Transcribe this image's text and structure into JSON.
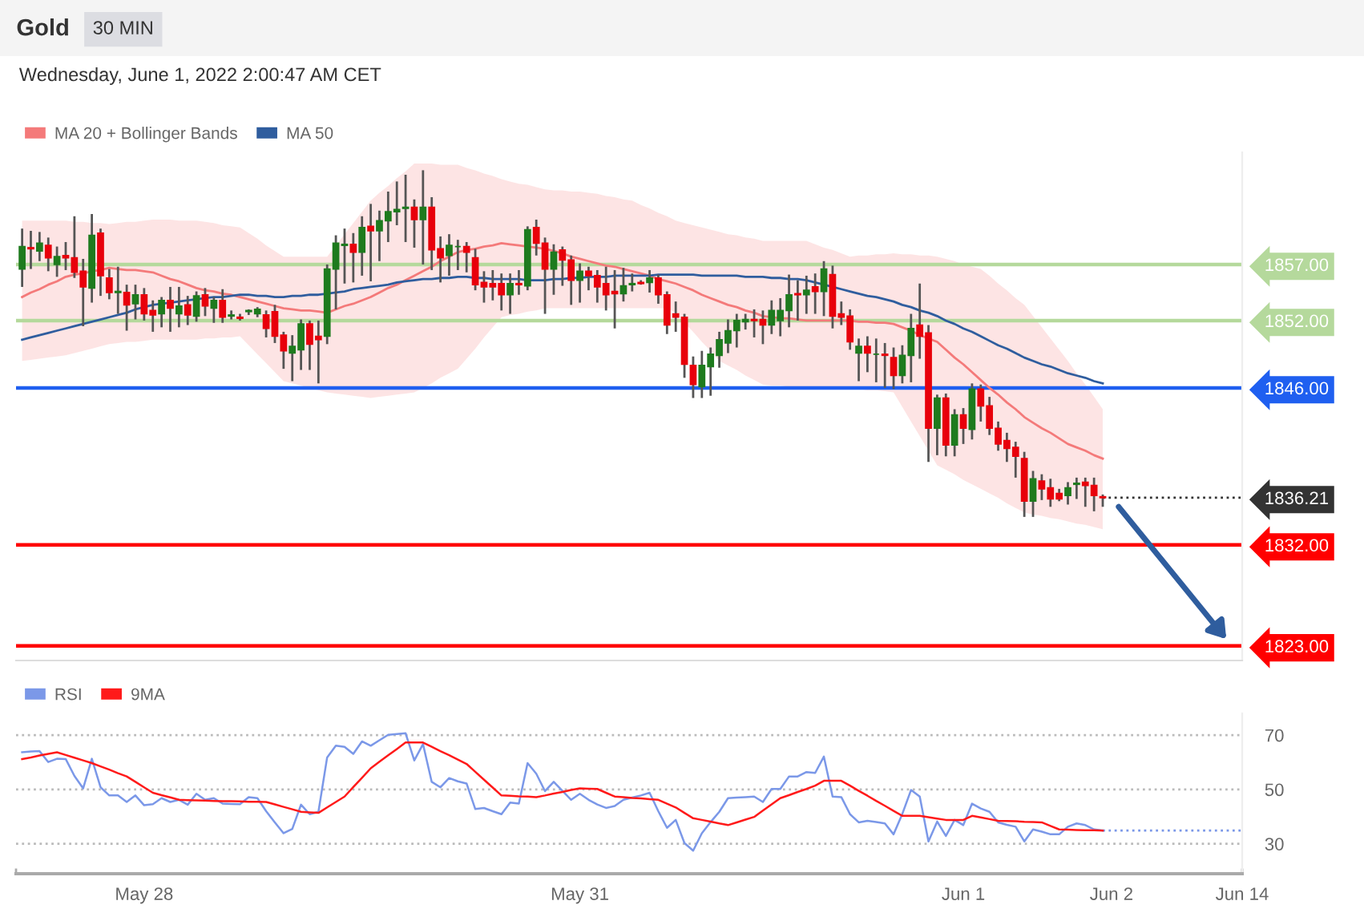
{
  "chart_data": [
    {
      "type": "candlestick",
      "title": "Gold",
      "subtitle": "30 MIN",
      "annotations": [
        "Wednesday, June 1, 2022 2:00:47 AM CET"
      ],
      "categories": [
        null,
        null,
        null,
        null,
        null,
        null,
        null,
        null,
        null,
        null,
        null,
        null,
        null,
        null,
        null,
        null,
        null,
        null,
        null,
        null,
        null,
        null,
        null,
        null,
        null,
        null,
        null,
        null,
        null,
        null,
        null,
        null,
        null,
        null,
        null,
        null,
        null,
        null,
        null,
        null,
        null,
        null,
        null,
        null,
        null,
        null,
        null,
        null,
        null,
        null,
        null,
        null,
        null,
        null,
        null,
        null,
        null,
        null,
        null,
        null,
        null,
        null,
        null,
        null,
        null,
        null,
        null,
        null,
        null,
        null,
        null,
        null,
        null,
        null,
        null,
        null,
        null,
        null,
        null,
        null,
        null,
        null,
        null,
        null,
        null,
        null,
        null,
        null,
        null,
        null,
        null,
        null,
        null,
        null,
        null,
        null,
        null,
        null,
        null,
        null,
        null,
        null,
        null,
        null,
        null,
        null,
        null,
        null,
        null,
        null,
        null,
        null,
        null,
        null,
        null,
        null,
        null,
        null,
        null,
        null,
        null,
        null,
        null,
        null,
        null,
        null,
        null,
        null,
        null,
        null,
        null,
        null,
        null,
        null,
        null,
        null,
        null,
        null,
        null,
        null,
        null
      ],
      "ohlc": [
        [
          1856.6,
          1860.2,
          1855.0,
          1858.6
        ],
        [
          1858.5,
          1860.0,
          1856.6,
          1858.4
        ],
        [
          1858.2,
          1859.9,
          1857.3,
          1858.9
        ],
        [
          1858.7,
          1859.4,
          1856.4,
          1857.6
        ],
        [
          1857.0,
          1858.6,
          1855.9,
          1857.7
        ],
        [
          1857.8,
          1859.0,
          1856.5,
          1857.6
        ],
        [
          1857.6,
          1861.3,
          1855.8,
          1856.3
        ],
        [
          1856.4,
          1857.5,
          1851.5,
          1855.0
        ],
        [
          1854.9,
          1861.5,
          1853.6,
          1859.6
        ],
        [
          1859.8,
          1860.2,
          1854.2,
          1856.0
        ],
        [
          1855.8,
          1856.6,
          1853.9,
          1854.5
        ],
        [
          1854.5,
          1856.8,
          1852.6,
          1854.6
        ],
        [
          1854.5,
          1855.2,
          1851.1,
          1853.4
        ],
        [
          1853.5,
          1855.2,
          1852.1,
          1854.3
        ],
        [
          1854.3,
          1854.9,
          1852.0,
          1852.6
        ],
        [
          1852.9,
          1853.8,
          1851.0,
          1852.5
        ],
        [
          1852.6,
          1854.1,
          1851.4,
          1853.8
        ],
        [
          1853.8,
          1855.0,
          1851.0,
          1853.1
        ],
        [
          1852.6,
          1855.0,
          1851.4,
          1853.3
        ],
        [
          1853.4,
          1854.2,
          1851.6,
          1852.5
        ],
        [
          1852.4,
          1854.6,
          1851.9,
          1854.2
        ],
        [
          1854.3,
          1854.9,
          1852.4,
          1853.3
        ],
        [
          1853.1,
          1854.1,
          1851.8,
          1853.8
        ],
        [
          1853.8,
          1854.8,
          1851.8,
          1852.3
        ],
        [
          1852.4,
          1852.9,
          1852.1,
          1852.5
        ],
        [
          1852.3,
          1852.6,
          1852.0,
          1852.2
        ],
        [
          1852.8,
          1853.0,
          1852.5,
          1852.9
        ],
        [
          1852.6,
          1853.2,
          1852.3,
          1853.0
        ],
        [
          1852.5,
          1852.9,
          1850.5,
          1851.3
        ],
        [
          1852.8,
          1853.4,
          1850.0,
          1850.6
        ],
        [
          1850.7,
          1851.0,
          1847.7,
          1849.3
        ],
        [
          1849.1,
          1850.7,
          1846.6,
          1849.7
        ],
        [
          1849.4,
          1852.1,
          1847.6,
          1851.7
        ],
        [
          1851.7,
          1852.0,
          1847.6,
          1849.9
        ],
        [
          1850.6,
          1852.0,
          1846.4,
          1850.3
        ],
        [
          1850.6,
          1857.0,
          1849.9,
          1856.6
        ],
        [
          1856.6,
          1859.6,
          1853.0,
          1858.9
        ],
        [
          1858.7,
          1860.2,
          1855.3,
          1858.8
        ],
        [
          1858.8,
          1859.8,
          1855.4,
          1858.1
        ],
        [
          1858.1,
          1861.3,
          1856.0,
          1860.3
        ],
        [
          1860.4,
          1862.4,
          1855.5,
          1860.0
        ],
        [
          1860.0,
          1861.8,
          1857.3,
          1860.9
        ],
        [
          1860.9,
          1863.5,
          1859.0,
          1861.7
        ],
        [
          1861.7,
          1864.4,
          1860.5,
          1861.9
        ],
        [
          1862.0,
          1865.0,
          1859.0,
          1862.1
        ],
        [
          1862.1,
          1862.8,
          1858.5,
          1861.0
        ],
        [
          1861.0,
          1865.4,
          1857.0,
          1862.1
        ],
        [
          1862.1,
          1863.0,
          1856.5,
          1858.3
        ],
        [
          1858.4,
          1859.5,
          1855.4,
          1857.6
        ],
        [
          1857.8,
          1859.7,
          1856.0,
          1858.7
        ],
        [
          1858.6,
          1859.2,
          1856.5,
          1858.6
        ],
        [
          1858.6,
          1859.0,
          1856.3,
          1858.1
        ],
        [
          1857.6,
          1858.4,
          1854.7,
          1855.2
        ],
        [
          1855.4,
          1856.4,
          1853.6,
          1855.0
        ],
        [
          1855.3,
          1856.5,
          1853.8,
          1855.0
        ],
        [
          1855.3,
          1856.2,
          1852.9,
          1854.3
        ],
        [
          1854.3,
          1856.2,
          1852.6,
          1855.3
        ],
        [
          1855.3,
          1856.5,
          1854.3,
          1855.2
        ],
        [
          1855.1,
          1860.4,
          1854.7,
          1860.1
        ],
        [
          1860.3,
          1861.0,
          1857.8,
          1858.9
        ],
        [
          1858.9,
          1859.4,
          1852.6,
          1856.6
        ],
        [
          1856.6,
          1858.8,
          1854.3,
          1858.1
        ],
        [
          1858.3,
          1858.6,
          1855.1,
          1857.4
        ],
        [
          1857.4,
          1857.8,
          1853.4,
          1855.6
        ],
        [
          1855.6,
          1857.1,
          1853.6,
          1856.4
        ],
        [
          1856.4,
          1856.8,
          1854.7,
          1856.0
        ],
        [
          1856.0,
          1856.5,
          1853.6,
          1855.0
        ],
        [
          1855.3,
          1856.8,
          1852.9,
          1854.3
        ],
        [
          1854.6,
          1856.5,
          1851.3,
          1854.4
        ],
        [
          1854.4,
          1856.7,
          1853.7,
          1855.1
        ],
        [
          1855.2,
          1856.2,
          1854.6,
          1855.3
        ],
        [
          1855.4,
          1855.6,
          1855.2,
          1855.3
        ],
        [
          1855.4,
          1856.5,
          1854.5,
          1855.8
        ],
        [
          1855.8,
          1856.1,
          1853.5,
          1854.3
        ],
        [
          1854.3,
          1854.6,
          1850.8,
          1851.6
        ],
        [
          1852.6,
          1853.7,
          1851.0,
          1852.3
        ],
        [
          1852.3,
          1852.6,
          1846.9,
          1848.1
        ],
        [
          1848.0,
          1848.8,
          1845.1,
          1846.3
        ],
        [
          1846.1,
          1849.3,
          1845.1,
          1848.0
        ],
        [
          1847.9,
          1849.6,
          1845.3,
          1849.0
        ],
        [
          1848.9,
          1851.0,
          1847.8,
          1850.3
        ],
        [
          1850.0,
          1852.1,
          1849.1,
          1851.1
        ],
        [
          1851.1,
          1852.6,
          1849.6,
          1852.0
        ],
        [
          1851.9,
          1852.6,
          1851.2,
          1852.1
        ],
        [
          1852.1,
          1853.0,
          1850.5,
          1852.0
        ],
        [
          1852.1,
          1852.9,
          1849.9,
          1851.6
        ],
        [
          1851.6,
          1853.8,
          1850.8,
          1852.9
        ],
        [
          1852.0,
          1854.0,
          1850.6,
          1852.9
        ],
        [
          1852.9,
          1856.1,
          1851.4,
          1854.3
        ],
        [
          1854.4,
          1855.6,
          1852.0,
          1854.3
        ],
        [
          1854.3,
          1856.0,
          1852.6,
          1854.7
        ],
        [
          1855.0,
          1856.2,
          1852.6,
          1854.6
        ],
        [
          1854.6,
          1857.3,
          1852.4,
          1856.6
        ],
        [
          1856.1,
          1856.9,
          1851.3,
          1852.4
        ],
        [
          1852.6,
          1853.7,
          1851.6,
          1852.3
        ],
        [
          1852.4,
          1853.0,
          1849.4,
          1850.1
        ],
        [
          1849.1,
          1850.4,
          1846.6,
          1849.7
        ],
        [
          1849.7,
          1850.6,
          1847.4,
          1849.1
        ],
        [
          1849.0,
          1850.4,
          1846.5,
          1849.0
        ],
        [
          1849.0,
          1850.0,
          1846.0,
          1848.9
        ],
        [
          1848.7,
          1849.6,
          1845.9,
          1847.1
        ],
        [
          1847.1,
          1849.8,
          1846.4,
          1848.9
        ],
        [
          1848.9,
          1852.6,
          1846.5,
          1851.3
        ],
        [
          1851.6,
          1855.3,
          1848.6,
          1850.6
        ],
        [
          1850.9,
          1851.6,
          1839.4,
          1842.4
        ],
        [
          1842.4,
          1845.4,
          1840.0,
          1845.1
        ],
        [
          1845.1,
          1845.5,
          1839.9,
          1840.9
        ],
        [
          1840.9,
          1844.1,
          1839.9,
          1843.6
        ],
        [
          1843.6,
          1844.2,
          1841.0,
          1842.4
        ],
        [
          1842.3,
          1846.4,
          1841.4,
          1845.9
        ],
        [
          1845.9,
          1846.3,
          1843.0,
          1844.4
        ],
        [
          1844.4,
          1845.2,
          1841.8,
          1842.4
        ],
        [
          1842.4,
          1843.0,
          1840.4,
          1841.0
        ],
        [
          1841.3,
          1842.0,
          1839.4,
          1840.6
        ],
        [
          1840.7,
          1841.2,
          1838.0,
          1839.9
        ],
        [
          1839.7,
          1840.3,
          1834.5,
          1835.9
        ],
        [
          1835.9,
          1838.6,
          1834.5,
          1837.9
        ],
        [
          1837.7,
          1838.3,
          1836.0,
          1837.0
        ],
        [
          1837.1,
          1837.9,
          1835.4,
          1836.1
        ],
        [
          1836.6,
          1837.0,
          1835.9,
          1836.1
        ],
        [
          1836.4,
          1837.6,
          1835.6,
          1837.1
        ],
        [
          1837.4,
          1838.0,
          1836.1,
          1837.5
        ],
        [
          1837.6,
          1838.0,
          1835.4,
          1837.3
        ],
        [
          1837.3,
          1838.0,
          1835.0,
          1836.4
        ],
        [
          1836.3,
          1836.5,
          1835.4,
          1836.21
        ],
        null,
        null,
        null,
        null,
        null,
        null,
        null,
        null,
        null,
        null,
        null,
        null,
        null,
        null,
        null,
        null
      ],
      "colors": [
        "#1e7b1e",
        "#e8000b",
        "#1e7b1e",
        "#e8000b",
        "#1e7b1e",
        "#e8000b",
        "#e8000b",
        "#e8000b",
        "#1e7b1e",
        "#e8000b",
        "#e8000b",
        "#1e7b1e",
        "#e8000b",
        "#1e7b1e",
        "#e8000b",
        "#e8000b",
        "#1e7b1e",
        "#e8000b",
        "#1e7b1e",
        "#e8000b",
        "#1e7b1e",
        "#e8000b",
        "#1e7b1e",
        "#e8000b",
        "#1e7b1e",
        "#e8000b",
        "#1e7b1e",
        "#1e7b1e",
        "#e8000b",
        "#e8000b",
        "#e8000b",
        "#1e7b1e",
        "#1e7b1e",
        "#e8000b",
        "#e8000b",
        "#1e7b1e",
        "#1e7b1e",
        "#1e7b1e",
        "#e8000b",
        "#1e7b1e",
        "#e8000b",
        "#1e7b1e",
        "#1e7b1e",
        "#1e7b1e",
        "#1e7b1e",
        "#e8000b",
        "#1e7b1e",
        "#e8000b",
        "#e8000b",
        "#1e7b1e",
        "#1e7b1e",
        "#e8000b",
        "#e8000b",
        "#e8000b",
        "#e8000b",
        "#e8000b",
        "#1e7b1e",
        "#e8000b",
        "#1e7b1e",
        "#e8000b",
        "#e8000b",
        "#1e7b1e",
        "#e8000b",
        "#e8000b",
        "#1e7b1e",
        "#e8000b",
        "#e8000b",
        "#e8000b",
        "#e8000b",
        "#1e7b1e",
        "#1e7b1e",
        "#e8000b",
        "#1e7b1e",
        "#e8000b",
        "#e8000b",
        "#e8000b",
        "#e8000b",
        "#e8000b",
        "#1e7b1e",
        "#1e7b1e",
        "#1e7b1e",
        "#1e7b1e",
        "#1e7b1e",
        "#1e7b1e",
        "#e8000b",
        "#e8000b",
        "#1e7b1e",
        "#1e7b1e",
        "#1e7b1e",
        "#e8000b",
        "#1e7b1e",
        "#e8000b",
        "#1e7b1e",
        "#e8000b",
        "#e8000b",
        "#e8000b",
        "#1e7b1e",
        "#e8000b",
        "#1e7b1e",
        "#e8000b",
        "#e8000b",
        "#1e7b1e",
        "#1e7b1e",
        "#e8000b",
        "#e8000b",
        "#1e7b1e",
        "#e8000b",
        "#1e7b1e",
        "#e8000b",
        "#1e7b1e",
        "#e8000b",
        "#e8000b",
        "#e8000b",
        "#e8000b",
        "#e8000b",
        "#e8000b",
        "#1e7b1e",
        "#e8000b",
        "#e8000b",
        "#e8000b",
        "#1e7b1e",
        "#1e7b1e",
        "#e8000b",
        "#e8000b",
        "#e8000b",
        null,
        null,
        null,
        null,
        null,
        null,
        null,
        null,
        null,
        null,
        null,
        null,
        null,
        null,
        null,
        null
      ],
      "series": [
        {
          "name": "MA 20 + Bollinger Bands",
          "type": "line",
          "color": "#f47a7a",
          "values": [
            1854.1,
            1854.5,
            1854.8,
            1855.2,
            1855.5,
            1855.9,
            1856.1,
            1856.2,
            1856.4,
            1856.5,
            1856.7,
            1856.6,
            1856.5,
            1856.5,
            1856.4,
            1856.3,
            1856.0,
            1855.7,
            1855.5,
            1855.2,
            1854.9,
            1854.7,
            1854.6,
            1854.4,
            1854.3,
            1854.1,
            1853.9,
            1853.7,
            1853.5,
            1853.3,
            1853.1,
            1853.0,
            1852.9,
            1852.9,
            1852.8,
            1852.7,
            1853.0,
            1853.3,
            1853.5,
            1853.8,
            1854.1,
            1854.5,
            1854.9,
            1855.2,
            1855.6,
            1856.0,
            1856.4,
            1856.8,
            1857.3,
            1857.7,
            1858.1,
            1858.3,
            1858.4,
            1858.6,
            1858.7,
            1858.9,
            1858.8,
            1858.7,
            1858.6,
            1858.5,
            1858.4,
            1858.2,
            1858.0,
            1857.7,
            1857.5,
            1857.3,
            1857.1,
            1856.9,
            1856.8,
            1856.6,
            1856.4,
            1856.2,
            1856.0,
            1855.7,
            1855.5,
            1855.3,
            1855.0,
            1854.7,
            1854.3,
            1854.0,
            1853.7,
            1853.4,
            1853.2,
            1852.9,
            1852.7,
            1852.4,
            1852.3,
            1852.2,
            1852.2,
            1852.1,
            1852.0,
            1852.0,
            1852.0,
            1852.0,
            1852.0,
            1852.0,
            1851.9,
            1851.9,
            1851.8,
            1851.8,
            1851.7,
            1851.4,
            1851.1,
            1850.7,
            1850.4,
            1850.1,
            1849.4,
            1848.7,
            1848.1,
            1847.4,
            1846.7,
            1846.0,
            1845.4,
            1844.7,
            1844.1,
            1843.4,
            1842.9,
            1842.4,
            1842.0,
            1841.5,
            1841.0,
            1840.7,
            1840.4,
            1840.0,
            1839.7,
            null,
            null,
            null,
            null,
            null,
            null,
            null,
            null,
            null,
            null,
            null,
            null,
            null,
            null,
            null,
            null
          ],
          "upper": [
            1860.9,
            1860.9,
            1860.9,
            1860.9,
            1860.9,
            1860.9,
            1860.8,
            1860.8,
            1860.7,
            1860.7,
            1860.6,
            1860.7,
            1860.8,
            1860.8,
            1860.9,
            1861.0,
            1861.0,
            1861.0,
            1860.9,
            1860.9,
            1860.9,
            1860.8,
            1860.7,
            1860.5,
            1860.4,
            1860.3,
            1859.8,
            1859.3,
            1858.7,
            1858.2,
            1857.7,
            1857.7,
            1857.7,
            1857.7,
            1857.7,
            1857.7,
            1858.7,
            1859.7,
            1860.7,
            1861.7,
            1862.7,
            1863.4,
            1864.0,
            1864.7,
            1865.3,
            1866.0,
            1866.0,
            1866.0,
            1865.9,
            1865.9,
            1865.9,
            1865.6,
            1865.4,
            1865.1,
            1864.9,
            1864.6,
            1864.4,
            1864.2,
            1864.1,
            1863.9,
            1863.7,
            1863.6,
            1863.6,
            1863.5,
            1863.5,
            1863.4,
            1863.3,
            1863.1,
            1863.0,
            1862.8,
            1862.7,
            1862.3,
            1862.0,
            1861.6,
            1861.3,
            1860.9,
            1860.7,
            1860.5,
            1860.3,
            1860.1,
            1859.9,
            1859.7,
            1859.6,
            1859.4,
            1859.3,
            1859.1,
            1859.1,
            1859.1,
            1859.1,
            1859.1,
            1859.1,
            1858.8,
            1858.5,
            1858.3,
            1858.0,
            1857.7,
            1857.8,
            1857.8,
            1857.9,
            1857.9,
            1858.0,
            1857.9,
            1857.9,
            1857.8,
            1857.8,
            1857.7,
            1857.5,
            1857.3,
            1857.0,
            1856.8,
            1856.6,
            1856.0,
            1855.3,
            1854.7,
            1854.0,
            1853.4,
            1852.4,
            1851.4,
            1850.4,
            1849.4,
            1848.4,
            1847.3,
            1846.3,
            1845.2,
            1844.1,
            null,
            null,
            null,
            null,
            null,
            null,
            null,
            null,
            null,
            null,
            null,
            null,
            null,
            null,
            null,
            null
          ],
          "lower": [
            1848.4,
            1848.5,
            1848.6,
            1848.7,
            1848.8,
            1848.9,
            1849.1,
            1849.3,
            1849.5,
            1849.7,
            1849.9,
            1850.0,
            1850.1,
            1850.1,
            1850.2,
            1850.3,
            1850.3,
            1850.3,
            1850.3,
            1850.3,
            1850.3,
            1850.4,
            1850.4,
            1850.5,
            1850.5,
            1850.6,
            1849.8,
            1849.0,
            1848.2,
            1847.4,
            1846.6,
            1846.4,
            1846.2,
            1846.0,
            1845.8,
            1845.6,
            1845.5,
            1845.4,
            1845.3,
            1845.2,
            1845.1,
            1845.2,
            1845.3,
            1845.4,
            1845.5,
            1845.6,
            1846.0,
            1846.4,
            1846.9,
            1847.3,
            1847.7,
            1848.6,
            1849.5,
            1850.5,
            1851.4,
            1852.3,
            1852.5,
            1852.6,
            1852.8,
            1852.9,
            1853.1,
            1853.1,
            1853.1,
            1853.1,
            1853.1,
            1853.1,
            1853.1,
            1853.1,
            1853.1,
            1853.1,
            1853.1,
            1853.1,
            1853.1,
            1853.1,
            1853.1,
            1852.7,
            1851.8,
            1851.0,
            1850.1,
            1849.3,
            1848.4,
            1848.0,
            1847.6,
            1847.1,
            1846.7,
            1846.3,
            1846.2,
            1846.2,
            1846.1,
            1846.1,
            1846.0,
            1846.0,
            1846.0,
            1846.0,
            1846.0,
            1846.0,
            1845.9,
            1845.8,
            1845.8,
            1845.7,
            1845.6,
            1844.3,
            1843.0,
            1841.7,
            1840.4,
            1839.1,
            1838.7,
            1838.3,
            1837.8,
            1837.4,
            1837.0,
            1836.6,
            1836.2,
            1835.7,
            1835.3,
            1834.9,
            1834.7,
            1834.6,
            1834.4,
            1834.3,
            1834.1,
            1833.9,
            1833.8,
            1833.6,
            1833.4,
            null,
            null,
            null,
            null,
            null,
            null,
            null,
            null,
            null,
            null,
            null,
            null,
            null,
            null,
            null,
            null
          ]
        },
        {
          "name": "MA 50",
          "type": "line",
          "color": "#2f5d9e",
          "values": [
            1850.3,
            1850.5,
            1850.7,
            1850.9,
            1851.1,
            1851.3,
            1851.5,
            1851.7,
            1851.9,
            1852.1,
            1852.3,
            1852.5,
            1852.7,
            1853.0,
            1853.2,
            1853.4,
            1853.5,
            1853.6,
            1853.7,
            1853.8,
            1853.9,
            1854.0,
            1854.1,
            1854.1,
            1854.2,
            1854.3,
            1854.3,
            1854.2,
            1854.2,
            1854.1,
            1854.1,
            1854.2,
            1854.2,
            1854.3,
            1854.3,
            1854.4,
            1854.5,
            1854.6,
            1854.8,
            1854.9,
            1855.0,
            1855.1,
            1855.2,
            1855.4,
            1855.5,
            1855.6,
            1855.7,
            1855.7,
            1855.8,
            1855.8,
            1855.9,
            1855.9,
            1855.8,
            1855.8,
            1855.7,
            1855.7,
            1855.7,
            1855.7,
            1855.6,
            1855.6,
            1855.6,
            1855.7,
            1855.7,
            1855.8,
            1855.8,
            1855.9,
            1855.9,
            1855.9,
            1856.0,
            1856.0,
            1856.0,
            1856.0,
            1856.0,
            1856.1,
            1856.1,
            1856.1,
            1856.1,
            1856.1,
            1856.0,
            1856.0,
            1856.0,
            1856.0,
            1856.0,
            1855.9,
            1855.9,
            1855.9,
            1855.8,
            1855.8,
            1855.7,
            1855.7,
            1855.6,
            1855.4,
            1855.2,
            1855.0,
            1854.8,
            1854.6,
            1854.4,
            1854.2,
            1854.1,
            1853.9,
            1853.7,
            1853.4,
            1853.2,
            1852.9,
            1852.7,
            1852.4,
            1852.0,
            1851.7,
            1851.3,
            1851.0,
            1850.6,
            1850.2,
            1849.8,
            1849.5,
            1849.1,
            1848.7,
            1848.4,
            1848.1,
            1847.9,
            1847.6,
            1847.3,
            1847.1,
            1846.9,
            1846.6,
            1846.4,
            null,
            null,
            null,
            null,
            null,
            null,
            null,
            null,
            null,
            null,
            null,
            null,
            null,
            null,
            null,
            null
          ]
        }
      ],
      "ylim": [
        1821.7,
        1867
      ],
      "yticks": [
        {
          "value": 1857,
          "label": "1857.00"
        },
        {
          "value": 1852,
          "label": "1852.00"
        },
        {
          "value": 1846,
          "label": "1846.00"
        },
        {
          "value": 1836.21,
          "label": "1836.21"
        },
        {
          "value": 1832,
          "label": "1832.00"
        },
        {
          "value": 1823,
          "label": "1823.00"
        }
      ],
      "ref_lines": [
        {
          "axis": "y",
          "value": 1857,
          "color": "#b5d99c",
          "line_style": "solid"
        },
        {
          "axis": "y",
          "value": 1852,
          "color": "#b5d99c",
          "line_style": "solid"
        },
        {
          "axis": "y",
          "value": 1846,
          "color": "#1f5ff0",
          "line_style": "solid"
        },
        {
          "axis": "y",
          "value": 1836.21,
          "color": "#333333",
          "line_style": "dotted"
        },
        {
          "axis": "y",
          "value": 1832,
          "color": "#ff0000",
          "line_style": "solid"
        },
        {
          "axis": "y",
          "value": 1823,
          "color": "#ff0000",
          "line_style": "solid"
        }
      ],
      "legend": "top left",
      "tick_labels": "y"
    },
    {
      "type": "line",
      "categories": [
        null,
        null,
        null,
        null,
        null,
        null,
        null,
        null,
        null,
        null,
        null,
        null,
        null,
        null,
        "May 28",
        null,
        null,
        null,
        null,
        null,
        null,
        null,
        null,
        null,
        null,
        null,
        null,
        null,
        null,
        null,
        null,
        null,
        null,
        null,
        null,
        null,
        null,
        null,
        null,
        null,
        null,
        null,
        null,
        null,
        null,
        null,
        null,
        null,
        null,
        null,
        null,
        null,
        null,
        null,
        null,
        null,
        null,
        null,
        null,
        null,
        null,
        null,
        null,
        null,
        "May 31",
        null,
        null,
        null,
        null,
        null,
        null,
        null,
        null,
        null,
        null,
        null,
        null,
        null,
        null,
        null,
        null,
        null,
        null,
        null,
        null,
        null,
        null,
        null,
        null,
        null,
        null,
        null,
        null,
        null,
        null,
        null,
        null,
        null,
        null,
        null,
        null,
        null,
        null,
        null,
        null,
        null,
        null,
        null,
        "Jun 1",
        null,
        null,
        null,
        null,
        null,
        null,
        null,
        null,
        null,
        null,
        null,
        null,
        null,
        null,
        null,
        null,
        "Jun 2",
        null,
        null,
        null,
        null,
        null,
        null,
        null,
        null,
        null,
        null,
        null,
        null,
        null,
        null,
        "Jun 14"
      ],
      "series": [
        {
          "name": "RSI",
          "color": "#7b98e8",
          "values": [
            63.7,
            64.0,
            64.1,
            60.1,
            61.3,
            61.2,
            55.0,
            50.4,
            61.3,
            50.8,
            47.8,
            47.8,
            45.4,
            47.8,
            44.2,
            44.6,
            46.8,
            45.4,
            46.2,
            44.4,
            48.4,
            46.2,
            46.8,
            44.8,
            44.7,
            44.6,
            47.2,
            46.8,
            42.0,
            37.9,
            33.9,
            35.5,
            44.4,
            40.9,
            41.8,
            61.8,
            66.1,
            65.7,
            63.1,
            67.7,
            66.1,
            68.1,
            70.1,
            70.4,
            70.7,
            60.7,
            66.7,
            52.8,
            50.8,
            54.2,
            53.0,
            52.2,
            42.8,
            43.2,
            42.0,
            40.9,
            45.2,
            44.8,
            59.7,
            55.8,
            49.4,
            52.8,
            49.5,
            46.2,
            48.4,
            46.2,
            44.5,
            43.2,
            43.9,
            46.2,
            47.0,
            47.8,
            48.8,
            42.0,
            35.9,
            38.8,
            30.3,
            27.5,
            33.9,
            38.0,
            41.8,
            46.8,
            47.0,
            47.2,
            47.4,
            45.4,
            50.2,
            50.2,
            54.8,
            54.8,
            56.4,
            56.1,
            62.1,
            47.4,
            47.2,
            40.9,
            37.9,
            38.5,
            38.0,
            37.5,
            33.5,
            41.0,
            49.8,
            47.4,
            30.9,
            38.2,
            32.9,
            38.8,
            36.9,
            44.8,
            43.0,
            41.8,
            37.9,
            37.0,
            36.3,
            30.9,
            35.3,
            34.5,
            33.5,
            33.5,
            36.3,
            37.5,
            36.9,
            35.3,
            34.9,
            null,
            null,
            null,
            null,
            null,
            null,
            null,
            null,
            null,
            null,
            null,
            null,
            null,
            null,
            null,
            null
          ]
        },
        {
          "name": "9MA",
          "color": "#ff1a1a",
          "values": [
            61.2,
            61.8,
            62.5,
            63.1,
            63.7,
            62.7,
            61.7,
            60.7,
            59.7,
            58.5,
            57.3,
            56.0,
            54.8,
            52.8,
            50.8,
            48.8,
            47.9,
            47.1,
            46.2,
            46.1,
            46.0,
            45.9,
            45.8,
            45.7,
            45.7,
            45.6,
            45.5,
            45.5,
            45.4,
            44.5,
            43.6,
            42.7,
            41.8,
            41.6,
            41.4,
            43.4,
            45.4,
            47.4,
            50.9,
            54.3,
            57.8,
            60.2,
            62.6,
            64.9,
            67.3,
            67.3,
            67.3,
            65.7,
            64.1,
            62.6,
            61.0,
            59.4,
            56.5,
            53.6,
            50.7,
            47.8,
            47.7,
            47.5,
            47.4,
            47.2,
            47.8,
            48.5,
            49.1,
            49.8,
            50.4,
            50.3,
            50.2,
            48.8,
            47.4,
            47.2,
            46.9,
            46.7,
            46.4,
            46.2,
            44.8,
            43.4,
            41.4,
            39.4,
            38.8,
            38.2,
            37.5,
            36.9,
            37.9,
            38.9,
            39.9,
            42.2,
            44.5,
            46.8,
            47.9,
            49.1,
            50.2,
            51.4,
            53.2,
            53.2,
            53.2,
            51.4,
            49.5,
            47.7,
            45.8,
            44.0,
            42.1,
            40.3,
            40.3,
            40.3,
            39.8,
            39.3,
            38.8,
            38.8,
            38.8,
            40.3,
            39.7,
            39.1,
            38.5,
            38.4,
            38.3,
            38.1,
            38.0,
            37.9,
            36.6,
            35.3,
            35.2,
            35.1,
            35.0,
            35.0,
            34.9,
            null,
            null,
            null,
            null,
            null,
            null,
            null,
            null,
            null,
            null,
            null,
            null,
            null,
            null,
            null,
            null
          ]
        }
      ],
      "ylim": [
        19,
        78
      ],
      "yticks": [
        30,
        50,
        70
      ],
      "ref_lines": [
        {
          "axis": "y",
          "value": 34.9,
          "color": "#7b98e8",
          "line_style": "dotted"
        }
      ],
      "grid": "y",
      "legend": "top left"
    }
  ]
}
